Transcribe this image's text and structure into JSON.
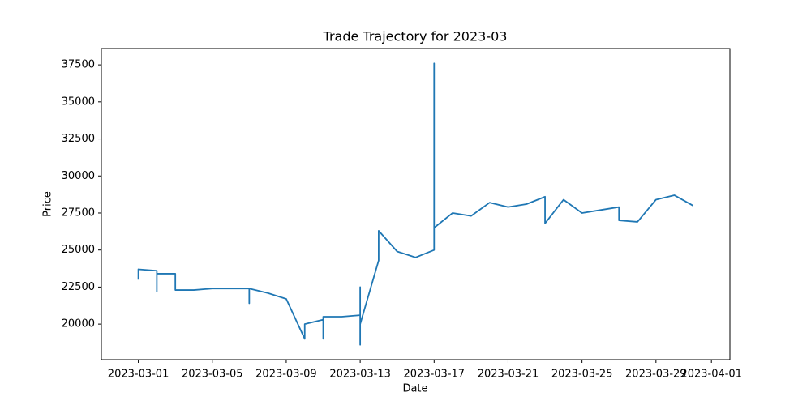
{
  "chart_data": {
    "type": "line",
    "title": "Trade Trajectory for 2023-03",
    "x_label": "Date",
    "y_label": "Price",
    "x": [
      "2023-03-01",
      "2023-03-01",
      "2023-03-01",
      "2023-03-02",
      "2023-03-02",
      "2023-03-02",
      "2023-03-03",
      "2023-03-03",
      "2023-03-04",
      "2023-03-05",
      "2023-03-06",
      "2023-03-07",
      "2023-03-07",
      "2023-03-07",
      "2023-03-08",
      "2023-03-09",
      "2023-03-10",
      "2023-03-10",
      "2023-03-11",
      "2023-03-11",
      "2023-03-11",
      "2023-03-12",
      "2023-03-13",
      "2023-03-13",
      "2023-03-13",
      "2023-03-13",
      "2023-03-13",
      "2023-03-14",
      "2023-03-14",
      "2023-03-15",
      "2023-03-16",
      "2023-03-17",
      "2023-03-17",
      "2023-03-17",
      "2023-03-18",
      "2023-03-19",
      "2023-03-20",
      "2023-03-21",
      "2023-03-22",
      "2023-03-23",
      "2023-03-23",
      "2023-03-24",
      "2023-03-25",
      "2023-03-26",
      "2023-03-27",
      "2023-03-27",
      "2023-03-28",
      "2023-03-29",
      "2023-03-30",
      "2023-03-31"
    ],
    "series": [
      {
        "name": "Price",
        "color": "#1f77b4",
        "values": [
          23000,
          23300,
          23700,
          23600,
          22200,
          23400,
          23400,
          22300,
          22300,
          22400,
          22400,
          22400,
          21400,
          22400,
          22100,
          21700,
          19000,
          20000,
          20300,
          19000,
          20500,
          20500,
          20600,
          22500,
          18600,
          22400,
          20000,
          24300,
          26300,
          24900,
          24500,
          25000,
          37600,
          26500,
          27500,
          27300,
          28200,
          27900,
          28100,
          28600,
          26800,
          28400,
          27500,
          27700,
          27900,
          27000,
          26900,
          28400,
          28700,
          28000
        ]
      }
    ],
    "xlim": [
      "2023-02-27",
      "2023-04-02"
    ],
    "xticks": [
      "2023-03-01",
      "2023-03-05",
      "2023-03-09",
      "2023-03-13",
      "2023-03-17",
      "2023-03-21",
      "2023-03-25",
      "2023-03-29",
      "2023-04-01"
    ],
    "ylim": [
      17600,
      38600
    ],
    "yticks": [
      20000,
      22500,
      25000,
      27500,
      30000,
      32500,
      35000,
      37500
    ],
    "grid": false
  }
}
